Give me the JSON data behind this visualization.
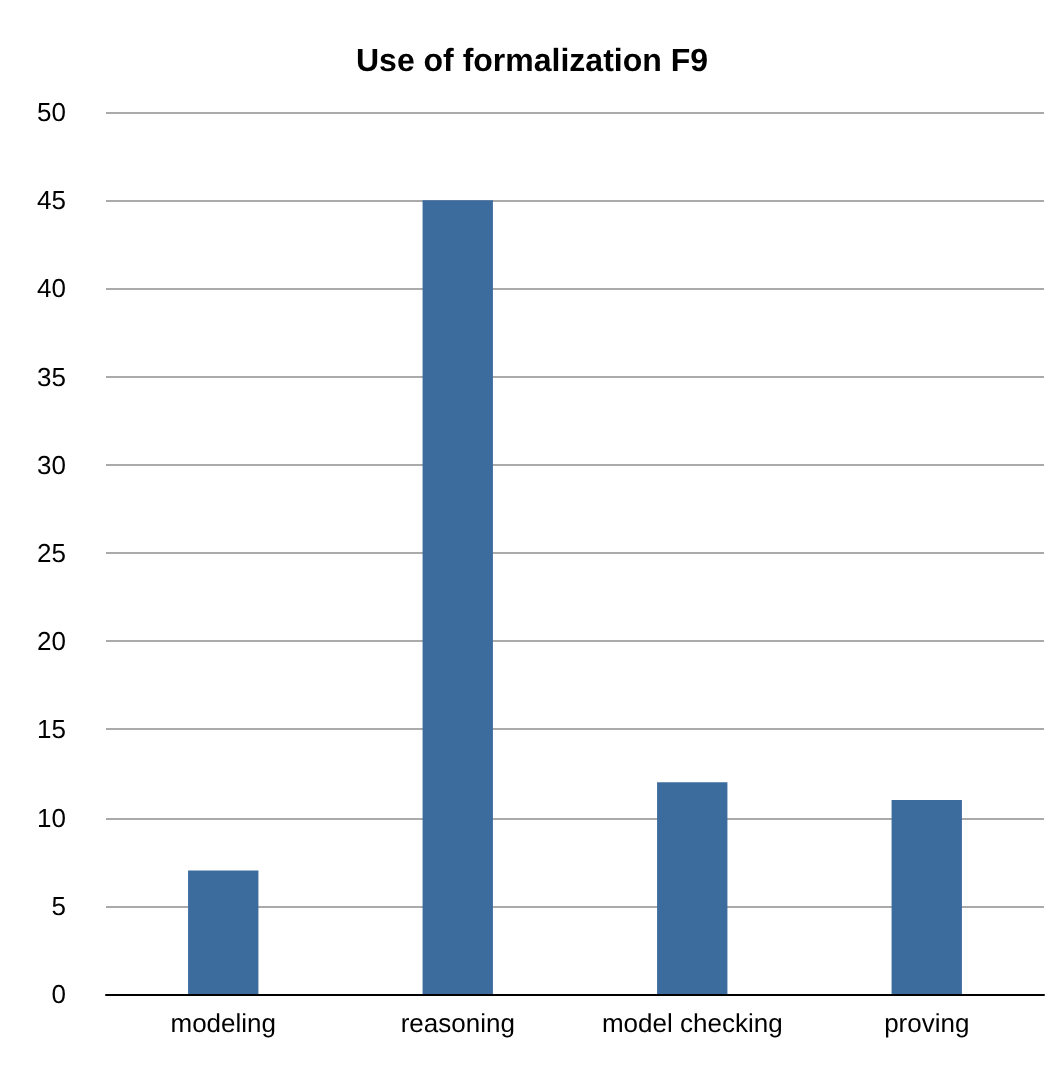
{
  "chart_data": {
    "type": "bar",
    "title": "Use of formalization F9",
    "categories": [
      "modeling",
      "reasoning",
      "model checking",
      "proving"
    ],
    "values": [
      7,
      45,
      12,
      11
    ],
    "color": "#3c6b9e",
    "ylim": [
      0,
      50
    ],
    "yticks": [
      0,
      5,
      10,
      15,
      20,
      25,
      30,
      35,
      40,
      45,
      50
    ],
    "grid": "y"
  }
}
